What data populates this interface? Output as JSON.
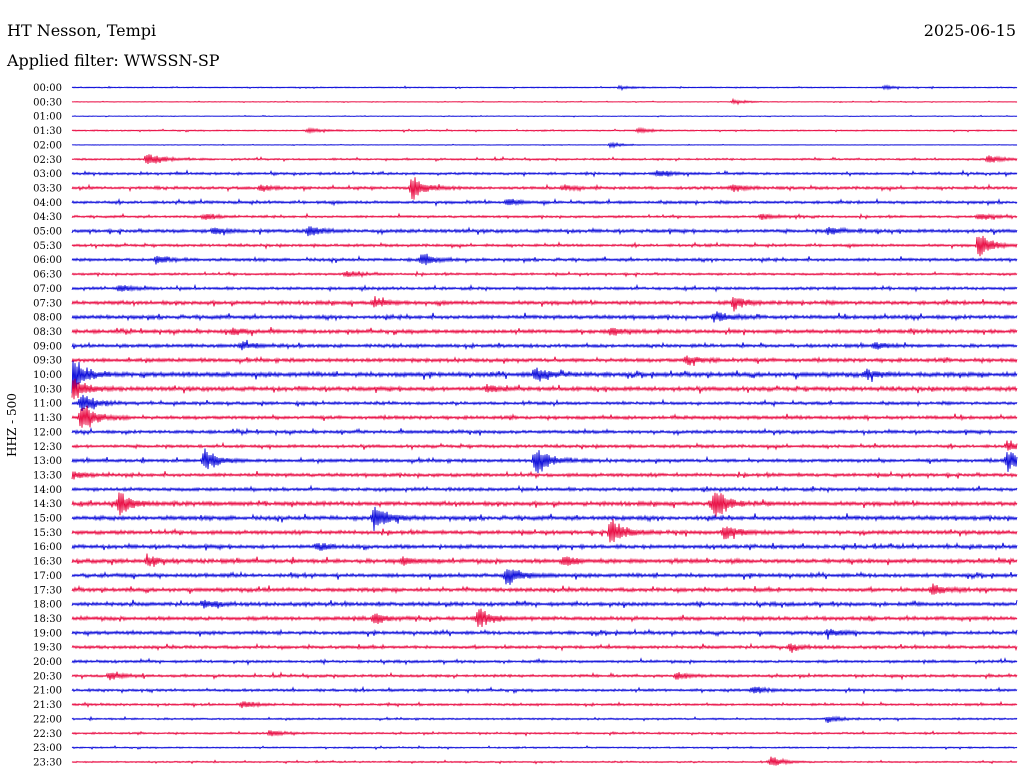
{
  "header": {
    "station": "HT Nesson, Tempi",
    "date": "2025-06-15",
    "filter_prefix": "Applied filter:",
    "filter_name": "WWSSN-SP"
  },
  "colors": {
    "trace_a": "#0000d8",
    "trace_b": "#e8003a",
    "background": "#ffffff",
    "text": "#000000"
  },
  "chart_data": {
    "type": "line",
    "ylabel": "HHZ - 500",
    "row_labels": [
      "00:00",
      "00:30",
      "01:00",
      "01:30",
      "02:00",
      "02:30",
      "03:00",
      "03:30",
      "04:00",
      "04:30",
      "05:00",
      "05:30",
      "06:00",
      "06:30",
      "07:00",
      "07:30",
      "08:00",
      "08:30",
      "09:00",
      "09:30",
      "10:00",
      "10:30",
      "11:00",
      "11:30",
      "12:00",
      "12:30",
      "13:00",
      "13:30",
      "14:00",
      "14:30",
      "15:00",
      "15:30",
      "16:00",
      "16:30",
      "17:00",
      "17:30",
      "18:00",
      "18:30",
      "19:00",
      "19:30",
      "20:00",
      "20:30",
      "21:00",
      "21:30",
      "22:00",
      "22:30",
      "23:00",
      "23:30"
    ],
    "noise_level": [
      0.6,
      0.4,
      0.4,
      0.7,
      0.3,
      1.0,
      1.3,
      1.5,
      1.5,
      1.2,
      1.8,
      1.4,
      1.6,
      1.2,
      1.5,
      2.0,
      2.0,
      2.0,
      1.8,
      2.0,
      2.4,
      2.2,
      1.6,
      1.8,
      1.7,
      1.6,
      1.8,
      1.8,
      1.8,
      2.2,
      2.2,
      2.0,
      2.0,
      2.2,
      2.0,
      2.0,
      2.0,
      2.0,
      1.8,
      1.6,
      1.4,
      1.4,
      1.4,
      1.2,
      1.0,
      1.0,
      0.8,
      0.8
    ],
    "events": [
      {
        "row": 0,
        "time": 0.58,
        "amp": 2
      },
      {
        "row": 0,
        "time": 0.86,
        "amp": 2
      },
      {
        "row": 1,
        "time": 0.7,
        "amp": 3
      },
      {
        "row": 3,
        "time": 0.25,
        "amp": 3
      },
      {
        "row": 3,
        "time": 0.6,
        "amp": 3
      },
      {
        "row": 4,
        "time": 0.57,
        "amp": 3
      },
      {
        "row": 5,
        "time": 0.08,
        "amp": 9
      },
      {
        "row": 5,
        "time": 0.97,
        "amp": 5
      },
      {
        "row": 6,
        "time": 0.62,
        "amp": 4
      },
      {
        "row": 7,
        "time": 0.2,
        "amp": 4
      },
      {
        "row": 7,
        "time": 0.36,
        "amp": 14
      },
      {
        "row": 7,
        "time": 0.52,
        "amp": 3
      },
      {
        "row": 7,
        "time": 0.7,
        "amp": 4
      },
      {
        "row": 8,
        "time": 0.46,
        "amp": 4
      },
      {
        "row": 9,
        "time": 0.14,
        "amp": 4
      },
      {
        "row": 9,
        "time": 0.73,
        "amp": 3
      },
      {
        "row": 9,
        "time": 0.96,
        "amp": 4
      },
      {
        "row": 10,
        "time": 0.15,
        "amp": 4
      },
      {
        "row": 10,
        "time": 0.25,
        "amp": 6
      },
      {
        "row": 10,
        "time": 0.8,
        "amp": 4
      },
      {
        "row": 11,
        "time": 0.96,
        "amp": 15
      },
      {
        "row": 12,
        "time": 0.09,
        "amp": 5
      },
      {
        "row": 12,
        "time": 0.37,
        "amp": 9
      },
      {
        "row": 13,
        "time": 0.29,
        "amp": 3
      },
      {
        "row": 14,
        "time": 0.05,
        "amp": 4
      },
      {
        "row": 15,
        "time": 0.32,
        "amp": 6
      },
      {
        "row": 15,
        "time": 0.7,
        "amp": 7
      },
      {
        "row": 16,
        "time": 0.68,
        "amp": 6
      },
      {
        "row": 17,
        "time": 0.17,
        "amp": 4
      },
      {
        "row": 17,
        "time": 0.57,
        "amp": 4
      },
      {
        "row": 18,
        "time": 0.18,
        "amp": 5
      },
      {
        "row": 18,
        "time": 0.85,
        "amp": 4
      },
      {
        "row": 19,
        "time": 0.65,
        "amp": 5
      },
      {
        "row": 20,
        "time": 0.0,
        "amp": 22
      },
      {
        "row": 20,
        "time": 0.49,
        "amp": 10
      },
      {
        "row": 20,
        "time": 0.84,
        "amp": 5
      },
      {
        "row": 21,
        "time": 0.0,
        "amp": 18
      },
      {
        "row": 21,
        "time": 0.44,
        "amp": 5
      },
      {
        "row": 22,
        "time": 0.01,
        "amp": 12
      },
      {
        "row": 23,
        "time": 0.01,
        "amp": 20
      },
      {
        "row": 25,
        "time": 0.99,
        "amp": 6
      },
      {
        "row": 26,
        "time": 0.14,
        "amp": 14
      },
      {
        "row": 26,
        "time": 0.49,
        "amp": 18
      },
      {
        "row": 26,
        "time": 0.99,
        "amp": 12
      },
      {
        "row": 27,
        "time": 0.0,
        "amp": 5
      },
      {
        "row": 29,
        "time": 0.05,
        "amp": 14
      },
      {
        "row": 29,
        "time": 0.68,
        "amp": 20
      },
      {
        "row": 30,
        "time": 0.32,
        "amp": 18
      },
      {
        "row": 31,
        "time": 0.57,
        "amp": 18
      },
      {
        "row": 31,
        "time": 0.69,
        "amp": 10
      },
      {
        "row": 32,
        "time": 0.26,
        "amp": 5
      },
      {
        "row": 33,
        "time": 0.08,
        "amp": 6
      },
      {
        "row": 33,
        "time": 0.35,
        "amp": 5
      },
      {
        "row": 33,
        "time": 0.52,
        "amp": 6
      },
      {
        "row": 34,
        "time": 0.46,
        "amp": 12
      },
      {
        "row": 35,
        "time": 0.91,
        "amp": 7
      },
      {
        "row": 36,
        "time": 0.14,
        "amp": 5
      },
      {
        "row": 37,
        "time": 0.43,
        "amp": 14
      },
      {
        "row": 37,
        "time": 0.32,
        "amp": 6
      },
      {
        "row": 38,
        "time": 0.8,
        "amp": 5
      },
      {
        "row": 39,
        "time": 0.76,
        "amp": 4
      },
      {
        "row": 41,
        "time": 0.04,
        "amp": 5
      },
      {
        "row": 41,
        "time": 0.64,
        "amp": 4
      },
      {
        "row": 42,
        "time": 0.72,
        "amp": 4
      },
      {
        "row": 43,
        "time": 0.18,
        "amp": 4
      },
      {
        "row": 44,
        "time": 0.8,
        "amp": 4
      },
      {
        "row": 45,
        "time": 0.21,
        "amp": 4
      },
      {
        "row": 47,
        "time": 0.74,
        "amp": 6
      }
    ]
  }
}
